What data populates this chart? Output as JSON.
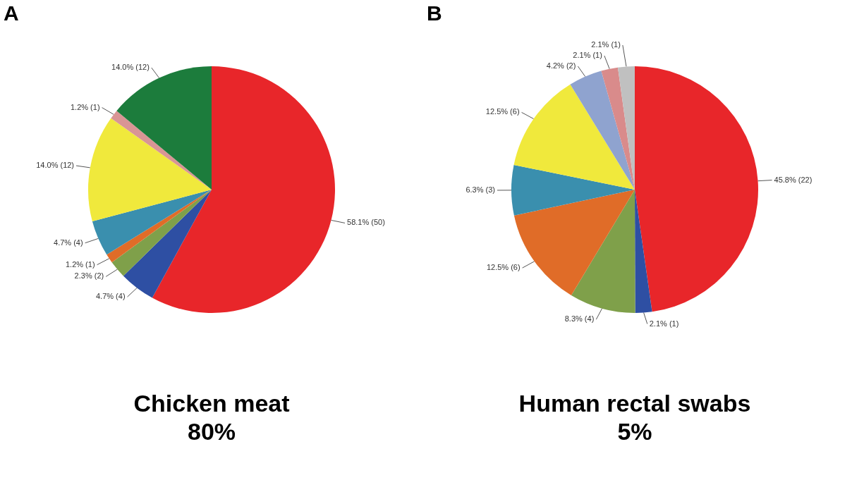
{
  "chart_data": [
    {
      "type": "pie",
      "title": "A",
      "categories": [
        null,
        null,
        null,
        null,
        null,
        null,
        null,
        null
      ],
      "values": [
        58.1,
        4.7,
        2.3,
        1.2,
        4.7,
        14.0,
        1.2,
        14.0
      ],
      "value_labels": [
        "58.1% (50)",
        "4.7% (4)",
        "2.3% (2)",
        "1.2% (1)",
        "4.7% (4)",
        "14.0% (12)",
        "1.2% (1)",
        "14.0% (12)"
      ],
      "colors": [
        "#e8262a",
        "#2e4fa3",
        "#7fa04a",
        "#e06c28",
        "#3a8fae",
        "#f0e93c",
        "#d99595",
        "#1c7c3c"
      ],
      "annotations": [
        "Chicken meat",
        "80%"
      ]
    },
    {
      "type": "pie",
      "title": "B",
      "categories": [
        null,
        null,
        null,
        null,
        null,
        null,
        null,
        null,
        null
      ],
      "values": [
        45.8,
        2.1,
        8.3,
        12.5,
        6.3,
        12.5,
        4.2,
        2.1,
        2.1
      ],
      "value_labels": [
        "45.8% (22)",
        "2.1% (1)",
        "8.3% (4)",
        "12.5% (6)",
        "6.3% (3)",
        "12.5% (6)",
        "4.2% (2)",
        "2.1% (1)",
        "2.1% (1)"
      ],
      "colors": [
        "#e8262a",
        "#2e4fa3",
        "#7fa04a",
        "#e06c28",
        "#3a8fae",
        "#f0e93c",
        "#8fa3cf",
        "#d98b8b",
        "#c0c0c0"
      ],
      "annotations": [
        "Human rectal swabs",
        "5%"
      ]
    }
  ]
}
